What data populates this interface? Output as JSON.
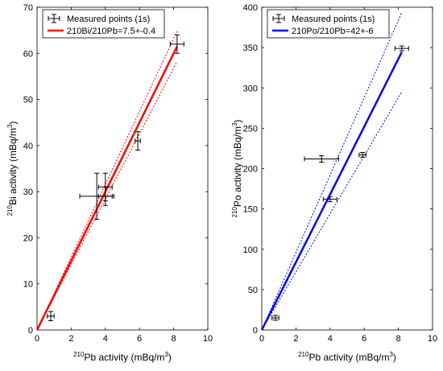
{
  "chart_data": [
    {
      "type": "scatter",
      "xlabel": {
        "sup": "210",
        "text": "Pb activity (mBq/m",
        "unit_sup": "3",
        "close": ")"
      },
      "ylabel": {
        "sup": "210",
        "text": "Bi activity (mBq/m",
        "unit_sup": "3",
        "close": ")"
      },
      "xlim": [
        0,
        10
      ],
      "ylim": [
        0,
        70
      ],
      "xticks": [
        0,
        2,
        4,
        6,
        8,
        10
      ],
      "yticks": [
        0,
        10,
        20,
        30,
        40,
        50,
        60,
        70
      ],
      "grid": false,
      "legend_position": "top-left",
      "series": [
        {
          "name": "Measured points  (1s)",
          "kind": "errorbar",
          "color": "#000000",
          "points": [
            {
              "x": 0.8,
              "y": 3,
              "xerr": 0.2,
              "yerr": 1
            },
            {
              "x": 3.5,
              "y": 29,
              "xerr": 1,
              "yerr": 5
            },
            {
              "x": 4.0,
              "y": 31,
              "xerr": 0.4,
              "yerr": 3
            },
            {
              "x": 4.0,
              "y": 29,
              "xerr": 0.4,
              "yerr": 2
            },
            {
              "x": 5.9,
              "y": 41,
              "xerr": 0.15,
              "yerr": 2
            },
            {
              "x": 8.2,
              "y": 62,
              "xerr": 0.4,
              "yerr": 2
            }
          ]
        },
        {
          "name": "210Bi/210Pb=7.5+-0.4",
          "kind": "fit",
          "color": "#ff0000",
          "slope": 7.5,
          "slope_low": 7.1,
          "slope_high": 7.9,
          "x_end": 8.2
        }
      ]
    },
    {
      "type": "scatter",
      "xlabel": {
        "sup": "210",
        "text": "Pb activity (mBq/m",
        "unit_sup": "3",
        "close": ")"
      },
      "ylabel": {
        "sup": "210",
        "text": "Po activity (mBq/m",
        "unit_sup": "3",
        "close": ")"
      },
      "xlim": [
        0,
        10
      ],
      "ylim": [
        0,
        400
      ],
      "xticks": [
        0,
        2,
        4,
        6,
        8,
        10
      ],
      "yticks": [
        0,
        50,
        100,
        150,
        200,
        250,
        300,
        350,
        400
      ],
      "grid": false,
      "legend_position": "top-left",
      "series": [
        {
          "name": "Measured points  (1s)",
          "kind": "errorbar",
          "color": "#000000",
          "points": [
            {
              "x": 0.8,
              "y": 15,
              "xerr": 0.2,
              "yerr": 3
            },
            {
              "x": 3.5,
              "y": 212,
              "xerr": 1,
              "yerr": 4
            },
            {
              "x": 4.0,
              "y": 162,
              "xerr": 0.4,
              "yerr": 3
            },
            {
              "x": 5.9,
              "y": 217,
              "xerr": 0.2,
              "yerr": 3
            },
            {
              "x": 8.2,
              "y": 349,
              "xerr": 0.4,
              "yerr": 3
            }
          ]
        },
        {
          "name": "210Po/210Pb=42+-6",
          "kind": "fit",
          "color": "#0000ff",
          "slope": 42,
          "slope_low": 36,
          "slope_high": 48,
          "x_end": 8.2
        }
      ]
    }
  ]
}
